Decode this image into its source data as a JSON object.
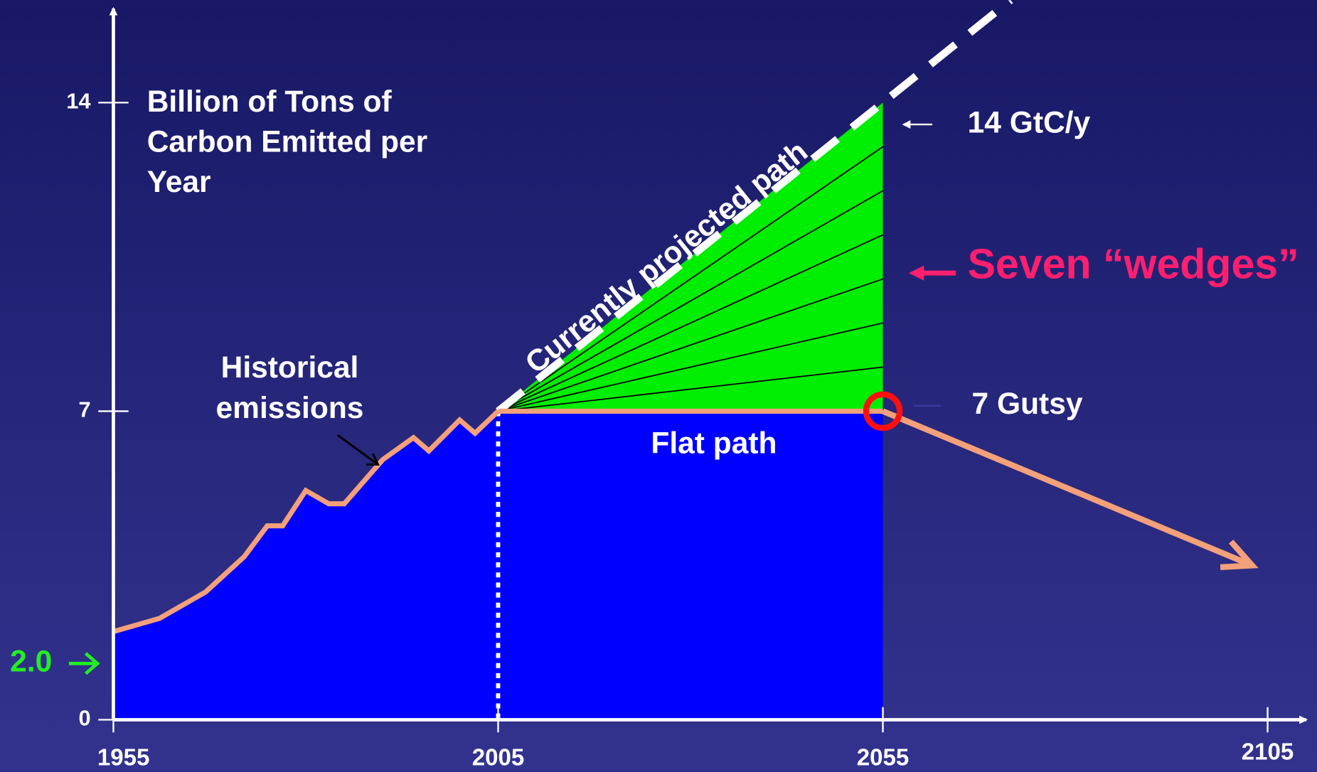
{
  "chart_data": {
    "type": "line",
    "ylabel": [
      "Billion of Tons of",
      "Carbon Emitted per",
      "Year"
    ],
    "xlim": [
      1955,
      2110
    ],
    "ylim": [
      0,
      16
    ],
    "xticks": [
      1955,
      2005,
      2055,
      2105
    ],
    "yticks": [
      0,
      7,
      14
    ],
    "series": [
      {
        "name": "Historical emissions",
        "label": [
          "Historical",
          "emissions"
        ],
        "color": "#f4a07a",
        "fill": "#0000ff",
        "x": [
          1955,
          1961,
          1967,
          1972,
          1975,
          1977,
          1980,
          1983,
          1985,
          1990,
          1994,
          1996,
          2000,
          2002,
          2005
        ],
        "values": [
          2.0,
          2.3,
          2.9,
          3.7,
          4.4,
          4.4,
          5.2,
          4.9,
          4.9,
          5.9,
          6.4,
          6.1,
          6.8,
          6.5,
          7.0
        ]
      },
      {
        "name": "Currently projected path",
        "color": "#ffffff",
        "x": [
          2005,
          2055
        ],
        "values": [
          7,
          14
        ]
      },
      {
        "name": "Flat path",
        "color": "#f4a07a",
        "fill": "#0000ff",
        "x": [
          2005,
          2055
        ],
        "values": [
          7,
          7
        ]
      },
      {
        "name": "7 Gutsy",
        "color": "#f4a07a",
        "x": [
          2055,
          2103
        ],
        "values": [
          7,
          3.5
        ]
      }
    ],
    "wedges": {
      "label": "Seven “wedges”",
      "color": "#00ee00",
      "label_color": "#ff1f6e",
      "x": 2055,
      "boundaries": [
        8,
        9,
        10,
        11,
        12,
        13
      ]
    },
    "annotations": {
      "end_value": "14 GtC/y",
      "start_value": {
        "text": "2.0",
        "value": 2.0,
        "color": "#22ee22"
      }
    }
  }
}
